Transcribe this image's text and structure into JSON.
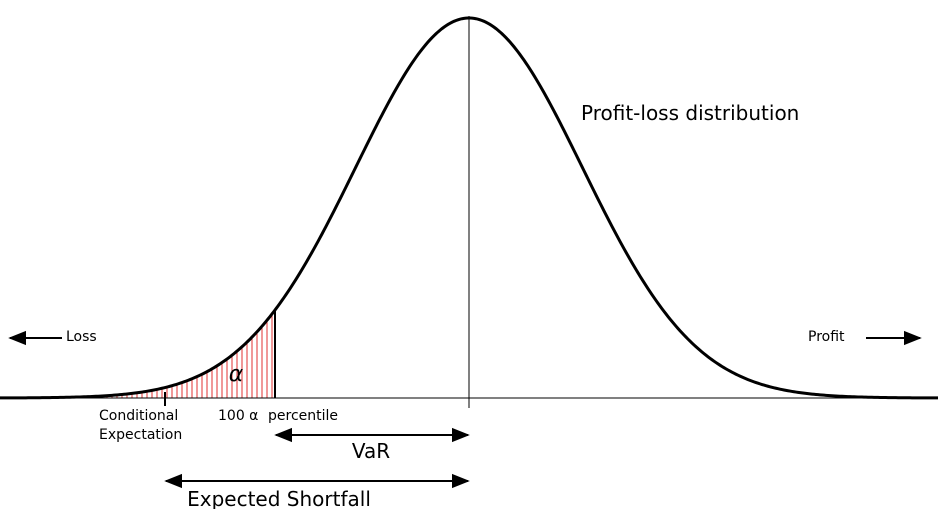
{
  "distribution_label": "Profit-loss distribution",
  "direction_labels": {
    "left": "Loss",
    "right": "Profit"
  },
  "tail_area_label": "α",
  "axis_labels": {
    "conditional_expectation": [
      "Conditional",
      "Expectation"
    ],
    "percentile_marker": "100 α",
    "percentile_word": "percentile"
  },
  "measures": {
    "var": "VaR",
    "expected_shortfall": "Expected Shortfall"
  }
}
